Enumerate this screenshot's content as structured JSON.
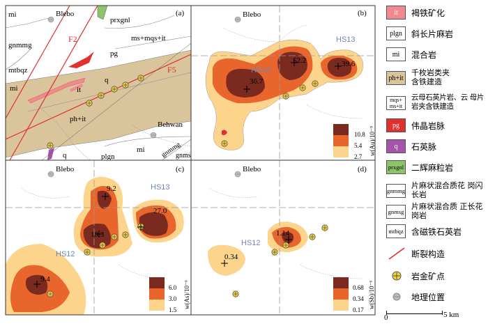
{
  "panels": {
    "a": {
      "label": "(a)",
      "place": "Blebo",
      "place2": "Behwan",
      "units": [
        "mi",
        "gnmmg",
        "mtbqz",
        "mi",
        "it",
        "ph+it",
        "pg",
        "prxgnl",
        "ms+mqs+it",
        "plgn",
        "mi",
        "gnmmg",
        "gnmsg",
        "q",
        "q"
      ],
      "faults": [
        "F2",
        "F5"
      ]
    },
    "b": {
      "label": "(b)",
      "place": "Blebo",
      "blocks": [
        "HS12",
        "HS13"
      ],
      "values": [
        "52.2",
        "39.6",
        "36.7"
      ],
      "legend": {
        "ylabel": "w(Au)/10⁻⁹",
        "levels": [
          "10.8",
          "5.4",
          "2.7"
        ]
      }
    },
    "c": {
      "label": "(c)",
      "place": "Blebo",
      "blocks": [
        "HS13",
        "HS12"
      ],
      "values": [
        "9.2",
        "27.0",
        "18.3",
        "9.4"
      ],
      "legend": {
        "ylabel": "w(As)/10⁻⁶",
        "levels": [
          "6.0",
          "3.0",
          "1.5"
        ]
      }
    },
    "d": {
      "label": "(d)",
      "place": "Blebo",
      "blocks": [
        "HS12"
      ],
      "values": [
        "1.14",
        "0.34"
      ],
      "legend": {
        "ylabel": "w(Sb)/10⁻⁶",
        "levels": [
          "0.68",
          "0.34",
          "0.17"
        ]
      }
    }
  },
  "legend": [
    {
      "code": "it",
      "text": "褐铁矿化",
      "color": "#f08a8f"
    },
    {
      "code": "plgn",
      "text": "斜长片麻岩",
      "color": "#ffffff"
    },
    {
      "code": "mi",
      "text": "混合岩",
      "color": "#ffffff"
    },
    {
      "code": "ph+it",
      "text": "千枚岩类夹 含铁建造",
      "color": "#d9c49b"
    },
    {
      "code": "mqs+ ms+it",
      "text": "云母石英片岩、云 母片岩夹含铁建造",
      "color": "#ffffff"
    },
    {
      "code": "pg",
      "text": "伟晶岩脉",
      "color": "#e03030"
    },
    {
      "code": "q",
      "text": "石英脉",
      "color": "#a455a8"
    },
    {
      "code": "prxgnl",
      "text": "二辉麻粒岩",
      "color": "#8dc46a"
    },
    {
      "code": "gnmmg",
      "text": "片麻状混合质花 岗闪长岩",
      "color": "#ffffff"
    },
    {
      "code": "gnmsg",
      "text": "片麻状混合质 正长花岗岩",
      "color": "#ffffff"
    },
    {
      "code": "mtbqz",
      "text": "含磁铁石英岩",
      "color": "#ffffff"
    },
    {
      "code": "fault",
      "text": "断裂构造"
    },
    {
      "code": "deposit",
      "text": "岩金矿点"
    },
    {
      "code": "place",
      "text": "地理位置"
    }
  ],
  "scale": {
    "start": "0",
    "end": "5 km"
  },
  "colors": {
    "high": "#7a2a1f",
    "mid": "#e8652c",
    "low": "#fdd48c",
    "wall": "#d9c49b"
  }
}
